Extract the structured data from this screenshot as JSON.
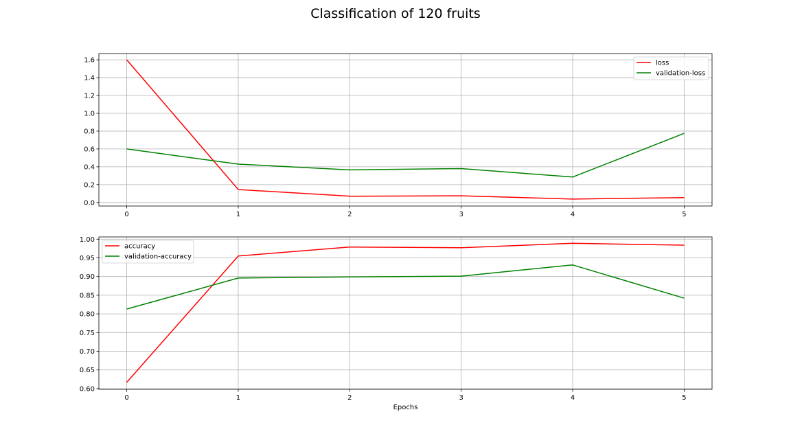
{
  "figure": {
    "title": "Classification of 120 fruits"
  },
  "colors": {
    "red": "#ff0000",
    "green": "#008000",
    "grid": "#b0b0b0"
  },
  "chart_data": [
    {
      "type": "line",
      "x": [
        0,
        1,
        2,
        3,
        4,
        5
      ],
      "xlim": [
        -0.25,
        5.25
      ],
      "ylim": [
        -0.04,
        1.67
      ],
      "xticks": [
        "0",
        "1",
        "2",
        "3",
        "4",
        "5"
      ],
      "yticks": [
        "0.0",
        "0.2",
        "0.4",
        "0.6",
        "0.8",
        "1.0",
        "1.2",
        "1.4",
        "1.6"
      ],
      "xlabel": "",
      "ylabel": "",
      "grid": true,
      "legend": "upper right",
      "series": [
        {
          "name": "loss",
          "color": "#ff0000",
          "values": [
            1.6,
            0.145,
            0.07,
            0.075,
            0.038,
            0.055
          ]
        },
        {
          "name": "validation-loss",
          "color": "#008000",
          "values": [
            0.6,
            0.43,
            0.365,
            0.38,
            0.285,
            0.775
          ]
        }
      ]
    },
    {
      "type": "line",
      "x": [
        0,
        1,
        2,
        3,
        4,
        5
      ],
      "xlim": [
        -0.25,
        5.25
      ],
      "ylim": [
        0.598,
        1.006
      ],
      "xticks": [
        "0",
        "1",
        "2",
        "3",
        "4",
        "5"
      ],
      "yticks": [
        "0.60",
        "0.65",
        "0.70",
        "0.75",
        "0.80",
        "0.85",
        "0.90",
        "0.95",
        "1.00"
      ],
      "xlabel": "Epochs",
      "ylabel": "",
      "grid": true,
      "legend": "upper left",
      "series": [
        {
          "name": "accuracy",
          "color": "#ff0000",
          "values": [
            0.617,
            0.955,
            0.979,
            0.977,
            0.989,
            0.984
          ]
        },
        {
          "name": "validation-accuracy",
          "color": "#008000",
          "values": [
            0.813,
            0.896,
            0.899,
            0.901,
            0.931,
            0.842
          ]
        }
      ]
    }
  ]
}
